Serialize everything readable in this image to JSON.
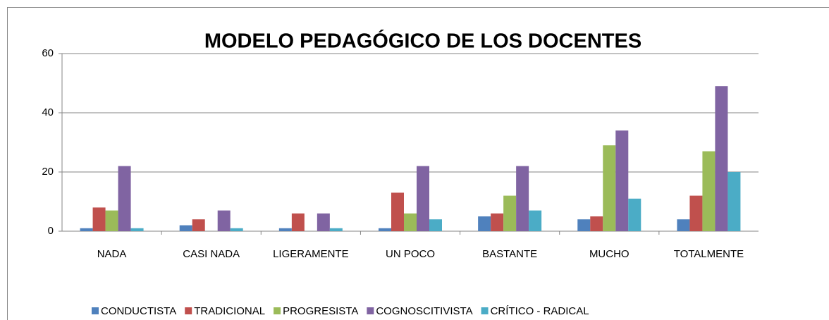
{
  "chart_data": {
    "type": "bar",
    "title": "MODELO PEDAGÓGICO DE LOS DOCENTES",
    "categories": [
      "NADA",
      "CASI NADA",
      "LIGERAMENTE",
      "UN POCO",
      "BASTANTE",
      "MUCHO",
      "TOTALMENTE"
    ],
    "series": [
      {
        "name": "CONDUCTISTA",
        "color": "#4f81bd",
        "values": [
          1,
          2,
          1,
          1,
          5,
          4,
          4
        ]
      },
      {
        "name": "TRADICIONAL",
        "color": "#c0504d",
        "values": [
          8,
          4,
          6,
          13,
          6,
          5,
          12
        ]
      },
      {
        "name": "PROGRESISTA",
        "color": "#9bbb59",
        "values": [
          7,
          0,
          0,
          6,
          12,
          29,
          27
        ]
      },
      {
        "name": "COGNOSCITIVISTA",
        "color": "#8064a2",
        "values": [
          22,
          7,
          6,
          22,
          22,
          34,
          49
        ]
      },
      {
        "name": "CRÍTICO - RADICAL",
        "color": "#4bacc6",
        "values": [
          1,
          1,
          1,
          4,
          7,
          11,
          20
        ]
      }
    ],
    "ylim": [
      0,
      60
    ],
    "yticks": [
      0,
      20,
      40,
      60
    ],
    "grid": true,
    "legend": "bottom"
  }
}
